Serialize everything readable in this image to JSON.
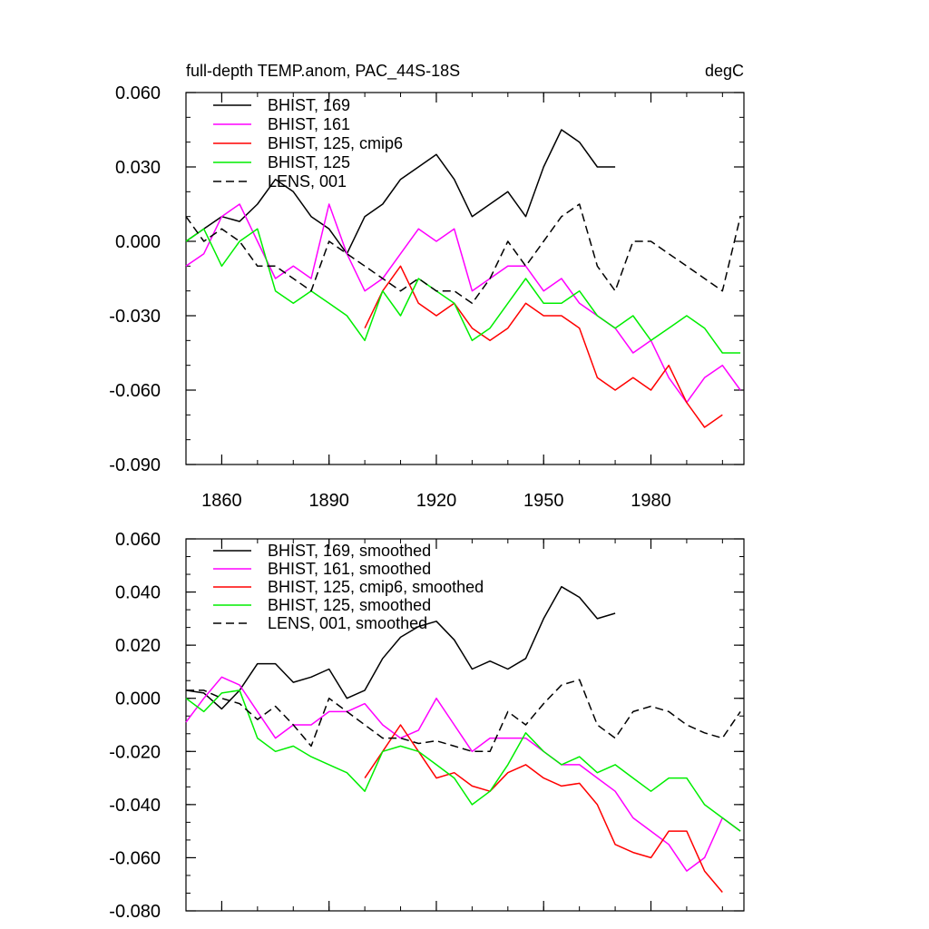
{
  "chart_data": [
    {
      "type": "line",
      "title_left": "full-depth TEMP.anom, PAC_44S-18S",
      "title_right": "degC",
      "xlim": [
        1850,
        2006
      ],
      "ylim": [
        -0.09,
        0.06
      ],
      "xticks": [
        1860,
        1890,
        1920,
        1950,
        1980
      ],
      "yticks": [
        0.06,
        0.03,
        0.0,
        -0.03,
        -0.06,
        -0.09
      ],
      "ytick_labels": [
        "0.060",
        "0.030",
        "0.000",
        "-0.030",
        "-0.060",
        "-0.090"
      ],
      "legend": "top-left",
      "series": [
        {
          "name": "BHIST, 169",
          "color": "#000000",
          "dash": "solid",
          "x": [
            1850,
            1855,
            1860,
            1865,
            1870,
            1875,
            1880,
            1885,
            1890,
            1895,
            1900,
            1905,
            1910,
            1915,
            1920,
            1925,
            1930,
            1935,
            1940,
            1945,
            1950,
            1955,
            1960,
            1965,
            1970
          ],
          "y": [
            0.0,
            0.005,
            0.01,
            0.008,
            0.015,
            0.025,
            0.02,
            0.01,
            0.005,
            -0.005,
            0.01,
            0.015,
            0.025,
            0.03,
            0.035,
            0.025,
            0.01,
            0.015,
            0.02,
            0.01,
            0.03,
            0.045,
            0.04,
            0.03,
            0.03
          ]
        },
        {
          "name": "BHIST, 161",
          "color": "#ff00ff",
          "dash": "solid",
          "x": [
            1850,
            1855,
            1860,
            1865,
            1870,
            1875,
            1880,
            1885,
            1890,
            1895,
            1900,
            1905,
            1910,
            1915,
            1920,
            1925,
            1930,
            1935,
            1940,
            1945,
            1950,
            1955,
            1960,
            1965,
            1970,
            1975,
            1980,
            1985,
            1990,
            1995,
            2000,
            2005
          ],
          "y": [
            -0.01,
            -0.005,
            0.01,
            0.015,
            0.0,
            -0.015,
            -0.01,
            -0.015,
            0.015,
            -0.005,
            -0.02,
            -0.015,
            -0.005,
            0.005,
            0.0,
            0.005,
            -0.02,
            -0.015,
            -0.01,
            -0.01,
            -0.02,
            -0.015,
            -0.025,
            -0.03,
            -0.035,
            -0.045,
            -0.04,
            -0.055,
            -0.065,
            -0.055,
            -0.05,
            -0.06
          ]
        },
        {
          "name": "BHIST, 125, cmip6",
          "color": "#ff0000",
          "dash": "solid",
          "x": [
            1900,
            1905,
            1910,
            1915,
            1920,
            1925,
            1930,
            1935,
            1940,
            1945,
            1950,
            1955,
            1960,
            1965,
            1970,
            1975,
            1980,
            1985,
            1990,
            1995,
            2000
          ],
          "y": [
            -0.035,
            -0.02,
            -0.01,
            -0.025,
            -0.03,
            -0.025,
            -0.035,
            -0.04,
            -0.035,
            -0.025,
            -0.03,
            -0.03,
            -0.035,
            -0.055,
            -0.06,
            -0.055,
            -0.06,
            -0.05,
            -0.065,
            -0.075,
            -0.07
          ]
        },
        {
          "name": "BHIST, 125",
          "color": "#00ee00",
          "dash": "solid",
          "x": [
            1850,
            1855,
            1860,
            1865,
            1870,
            1875,
            1880,
            1885,
            1890,
            1895,
            1900,
            1905,
            1910,
            1915,
            1920,
            1925,
            1930,
            1935,
            1940,
            1945,
            1950,
            1955,
            1960,
            1965,
            1970,
            1975,
            1980,
            1985,
            1990,
            1995,
            2000,
            2005
          ],
          "y": [
            0.0,
            0.005,
            -0.01,
            0.0,
            0.005,
            -0.02,
            -0.025,
            -0.02,
            -0.025,
            -0.03,
            -0.04,
            -0.02,
            -0.03,
            -0.015,
            -0.02,
            -0.025,
            -0.04,
            -0.035,
            -0.025,
            -0.015,
            -0.025,
            -0.025,
            -0.02,
            -0.03,
            -0.035,
            -0.03,
            -0.04,
            -0.035,
            -0.03,
            -0.035,
            -0.045,
            -0.045
          ]
        },
        {
          "name": "LENS, 001",
          "color": "#000000",
          "dash": "dashed",
          "x": [
            1850,
            1855,
            1860,
            1865,
            1870,
            1875,
            1880,
            1885,
            1890,
            1895,
            1900,
            1905,
            1910,
            1915,
            1920,
            1925,
            1930,
            1935,
            1940,
            1945,
            1950,
            1955,
            1960,
            1965,
            1970,
            1975,
            1980,
            1985,
            1990,
            1995,
            2000,
            2005
          ],
          "y": [
            0.01,
            0.0,
            0.005,
            0.0,
            -0.01,
            -0.01,
            -0.015,
            -0.02,
            0.0,
            -0.005,
            -0.01,
            -0.015,
            -0.02,
            -0.015,
            -0.02,
            -0.02,
            -0.025,
            -0.015,
            0.0,
            -0.01,
            0.0,
            0.01,
            0.015,
            -0.01,
            -0.02,
            0.0,
            0.0,
            -0.005,
            -0.01,
            -0.015,
            -0.02,
            0.01
          ]
        }
      ]
    },
    {
      "type": "line",
      "xlim": [
        1850,
        2006
      ],
      "ylim": [
        -0.08,
        0.06
      ],
      "xticks": [
        1860,
        1890,
        1920,
        1950,
        1980
      ],
      "yticks": [
        0.06,
        0.04,
        0.02,
        0.0,
        -0.02,
        -0.04,
        -0.06,
        -0.08
      ],
      "ytick_labels": [
        "0.060",
        "0.040",
        "0.020",
        "0.000",
        "-0.020",
        "-0.040",
        "-0.060",
        "-0.080"
      ],
      "legend": "top-left",
      "series": [
        {
          "name": "BHIST, 169, smoothed",
          "color": "#000000",
          "dash": "solid",
          "x": [
            1850,
            1855,
            1860,
            1865,
            1870,
            1875,
            1880,
            1885,
            1890,
            1895,
            1900,
            1905,
            1910,
            1915,
            1920,
            1925,
            1930,
            1935,
            1940,
            1945,
            1950,
            1955,
            1960,
            1965,
            1970
          ],
          "y": [
            0.003,
            0.002,
            -0.004,
            0.003,
            0.013,
            0.013,
            0.006,
            0.008,
            0.011,
            0.0,
            0.003,
            0.015,
            0.023,
            0.027,
            0.029,
            0.022,
            0.011,
            0.014,
            0.011,
            0.015,
            0.03,
            0.042,
            0.038,
            0.03,
            0.032
          ]
        },
        {
          "name": "BHIST, 161, smoothed",
          "color": "#ff00ff",
          "dash": "solid",
          "x": [
            1850,
            1855,
            1860,
            1865,
            1870,
            1875,
            1880,
            1885,
            1890,
            1895,
            1900,
            1905,
            1910,
            1915,
            1920,
            1925,
            1930,
            1935,
            1940,
            1945,
            1950,
            1955,
            1960,
            1965,
            1970,
            1975,
            1980,
            1985,
            1990,
            1995,
            2000,
            2005
          ],
          "y": [
            -0.009,
            0.0,
            0.008,
            0.005,
            -0.005,
            -0.015,
            -0.01,
            -0.01,
            -0.005,
            -0.005,
            -0.002,
            -0.01,
            -0.015,
            -0.012,
            0.0,
            -0.01,
            -0.02,
            -0.015,
            -0.015,
            -0.015,
            -0.02,
            -0.025,
            -0.025,
            -0.03,
            -0.035,
            -0.045,
            -0.05,
            -0.055,
            -0.065,
            -0.06,
            -0.045,
            -0.05
          ]
        },
        {
          "name": "BHIST, 125, cmip6, smoothed",
          "color": "#ff0000",
          "dash": "solid",
          "x": [
            1900,
            1905,
            1910,
            1915,
            1920,
            1925,
            1930,
            1935,
            1940,
            1945,
            1950,
            1955,
            1960,
            1965,
            1970,
            1975,
            1980,
            1985,
            1990,
            1995,
            2000
          ],
          "y": [
            -0.03,
            -0.02,
            -0.01,
            -0.02,
            -0.03,
            -0.028,
            -0.033,
            -0.035,
            -0.028,
            -0.025,
            -0.03,
            -0.033,
            -0.032,
            -0.04,
            -0.055,
            -0.058,
            -0.06,
            -0.05,
            -0.05,
            -0.065,
            -0.073
          ]
        },
        {
          "name": "BHIST, 125, smoothed",
          "color": "#00ee00",
          "dash": "solid",
          "x": [
            1850,
            1855,
            1860,
            1865,
            1870,
            1875,
            1880,
            1885,
            1890,
            1895,
            1900,
            1905,
            1910,
            1915,
            1920,
            1925,
            1930,
            1935,
            1940,
            1945,
            1950,
            1955,
            1960,
            1965,
            1970,
            1975,
            1980,
            1985,
            1990,
            1995,
            2000,
            2005
          ],
          "y": [
            0.0,
            -0.005,
            0.002,
            0.003,
            -0.015,
            -0.02,
            -0.018,
            -0.022,
            -0.025,
            -0.028,
            -0.035,
            -0.02,
            -0.018,
            -0.02,
            -0.025,
            -0.03,
            -0.04,
            -0.035,
            -0.025,
            -0.013,
            -0.02,
            -0.025,
            -0.022,
            -0.028,
            -0.025,
            -0.03,
            -0.035,
            -0.03,
            -0.03,
            -0.04,
            -0.045,
            -0.05
          ]
        },
        {
          "name": "LENS, 001, smoothed",
          "color": "#000000",
          "dash": "dashed",
          "x": [
            1850,
            1855,
            1860,
            1865,
            1870,
            1875,
            1880,
            1885,
            1890,
            1895,
            1900,
            1905,
            1910,
            1915,
            1920,
            1925,
            1930,
            1935,
            1940,
            1945,
            1950,
            1955,
            1960,
            1965,
            1970,
            1975,
            1980,
            1985,
            1990,
            1995,
            2000,
            2005
          ],
          "y": [
            0.003,
            0.003,
            0.0,
            -0.002,
            -0.008,
            -0.003,
            -0.01,
            -0.018,
            0.0,
            -0.005,
            -0.01,
            -0.015,
            -0.015,
            -0.017,
            -0.016,
            -0.018,
            -0.02,
            -0.02,
            -0.005,
            -0.01,
            -0.002,
            0.005,
            0.007,
            -0.01,
            -0.015,
            -0.005,
            -0.003,
            -0.005,
            -0.01,
            -0.013,
            -0.015,
            -0.005
          ]
        }
      ]
    }
  ]
}
